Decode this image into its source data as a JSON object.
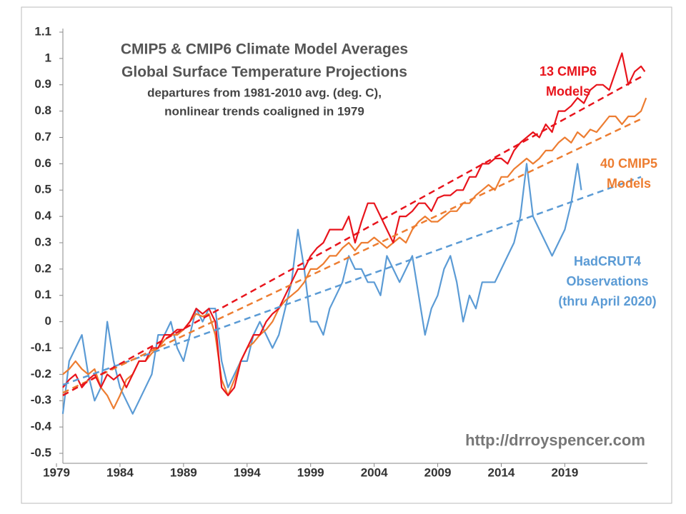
{
  "chart_data": {
    "type": "line",
    "title": [
      "CMIP5 & CMIP6 Climate Model Averages",
      "Global Surface Temperature Projections"
    ],
    "subtitle": [
      "departures from 1981-2010 avg. (deg. C),",
      "nonlinear trends coaligned in 1979"
    ],
    "source": "http://drroyspencer.com",
    "xlim": [
      1979,
      2025.5
    ],
    "xticks": [
      1979,
      1984,
      1989,
      1994,
      1999,
      2004,
      2009,
      2014,
      2019
    ],
    "ylim": [
      -0.5,
      1.1
    ],
    "yticks": [
      1.1,
      1,
      0.9,
      0.8,
      0.7,
      0.6,
      0.5,
      0.4,
      0.3,
      0.2,
      0.1,
      0,
      -0.1,
      -0.2,
      -0.3,
      -0.4,
      -0.5
    ],
    "grid": false,
    "series": [
      {
        "name": [
          "HadCRUT4",
          "Observations",
          "(thru April 2020)"
        ],
        "color": "#5b9bd5",
        "x": [
          1979.5,
          1980,
          1980.5,
          1981,
          1981.5,
          1982,
          1982.5,
          1983,
          1983.5,
          1984,
          1984.5,
          1985,
          1985.5,
          1986,
          1986.5,
          1987,
          1987.5,
          1988,
          1988.5,
          1989,
          1989.5,
          1990,
          1990.5,
          1991,
          1991.5,
          1992,
          1992.5,
          1993,
          1993.5,
          1994,
          1994.5,
          1995,
          1995.5,
          1996,
          1996.5,
          1997,
          1997.5,
          1998,
          1998.5,
          1999,
          1999.5,
          2000,
          2000.5,
          2001,
          2001.5,
          2002,
          2002.5,
          2003,
          2003.5,
          2004,
          2004.5,
          2005,
          2005.5,
          2006,
          2006.5,
          2007,
          2007.5,
          2008,
          2008.5,
          2009,
          2009.5,
          2010,
          2010.5,
          2011,
          2011.5,
          2012,
          2012.5,
          2013,
          2013.5,
          2014,
          2014.5,
          2015,
          2015.5,
          2016,
          2016.5,
          2017,
          2017.5,
          2018,
          2018.5,
          2019,
          2019.5,
          2020,
          2020.3
        ],
        "values": [
          -0.35,
          -0.15,
          -0.1,
          -0.05,
          -0.2,
          -0.3,
          -0.25,
          0.0,
          -0.15,
          -0.25,
          -0.3,
          -0.35,
          -0.3,
          -0.25,
          -0.2,
          -0.05,
          -0.05,
          0.0,
          -0.1,
          -0.15,
          -0.05,
          0.05,
          0.0,
          0.05,
          0.05,
          -0.15,
          -0.25,
          -0.2,
          -0.15,
          -0.15,
          -0.05,
          0.0,
          -0.05,
          -0.1,
          -0.05,
          0.05,
          0.15,
          0.35,
          0.2,
          0.0,
          0.0,
          -0.05,
          0.05,
          0.1,
          0.15,
          0.25,
          0.2,
          0.2,
          0.15,
          0.15,
          0.1,
          0.25,
          0.2,
          0.15,
          0.2,
          0.25,
          0.1,
          -0.05,
          0.05,
          0.1,
          0.2,
          0.25,
          0.15,
          0.0,
          0.1,
          0.05,
          0.15,
          0.15,
          0.15,
          0.2,
          0.25,
          0.3,
          0.4,
          0.6,
          0.4,
          0.35,
          0.3,
          0.25,
          0.3,
          0.35,
          0.45,
          0.6,
          0.5
        ]
      },
      {
        "name": [
          "40 CMIP5",
          "Models"
        ],
        "color": "#ed7d31",
        "x": [
          1979.5,
          1980,
          1980.5,
          1981,
          1981.5,
          1982,
          1982.5,
          1983,
          1983.5,
          1984,
          1984.5,
          1985,
          1985.5,
          1986,
          1986.5,
          1987,
          1987.5,
          1988,
          1988.5,
          1989,
          1989.5,
          1990,
          1990.5,
          1991,
          1991.5,
          1992,
          1992.5,
          1993,
          1993.5,
          1994,
          1994.5,
          1995,
          1995.5,
          1996,
          1996.5,
          1997,
          1997.5,
          1998,
          1998.5,
          1999,
          1999.5,
          2000,
          2000.5,
          2001,
          2001.5,
          2002,
          2002.5,
          2003,
          2003.5,
          2004,
          2004.5,
          2005,
          2005.5,
          2006,
          2006.5,
          2007,
          2007.5,
          2008,
          2008.5,
          2009,
          2009.5,
          2010,
          2010.5,
          2011,
          2011.5,
          2012,
          2012.5,
          2013,
          2013.5,
          2014,
          2014.5,
          2015,
          2015.5,
          2016,
          2016.5,
          2017,
          2017.5,
          2018,
          2018.5,
          2019,
          2019.5,
          2020,
          2020.5,
          2021,
          2021.5,
          2022,
          2022.5,
          2023,
          2023.5,
          2024,
          2024.5,
          2025,
          2025.4
        ],
        "values": [
          -0.2,
          -0.18,
          -0.15,
          -0.18,
          -0.2,
          -0.18,
          -0.25,
          -0.28,
          -0.33,
          -0.28,
          -0.22,
          -0.2,
          -0.15,
          -0.15,
          -0.12,
          -0.1,
          -0.07,
          -0.05,
          -0.05,
          -0.03,
          0.0,
          0.03,
          0.02,
          0.03,
          -0.05,
          -0.22,
          -0.28,
          -0.22,
          -0.15,
          -0.1,
          -0.08,
          -0.05,
          -0.03,
          0.0,
          0.05,
          0.08,
          0.1,
          0.12,
          0.15,
          0.2,
          0.2,
          0.22,
          0.25,
          0.25,
          0.28,
          0.3,
          0.27,
          0.3,
          0.3,
          0.32,
          0.3,
          0.28,
          0.3,
          0.32,
          0.3,
          0.35,
          0.38,
          0.4,
          0.38,
          0.38,
          0.4,
          0.42,
          0.42,
          0.45,
          0.45,
          0.48,
          0.5,
          0.52,
          0.5,
          0.55,
          0.55,
          0.58,
          0.6,
          0.62,
          0.6,
          0.62,
          0.65,
          0.65,
          0.68,
          0.7,
          0.68,
          0.72,
          0.7,
          0.73,
          0.72,
          0.75,
          0.78,
          0.78,
          0.75,
          0.78,
          0.78,
          0.8,
          0.85
        ]
      },
      {
        "name": [
          "13 CMIP6",
          "Models"
        ],
        "color": "#e8141c",
        "x": [
          1979.5,
          1980,
          1980.5,
          1981,
          1981.5,
          1982,
          1982.5,
          1983,
          1983.5,
          1984,
          1984.5,
          1985,
          1985.5,
          1986,
          1986.5,
          1987,
          1987.5,
          1988,
          1988.5,
          1989,
          1989.5,
          1990,
          1990.5,
          1991,
          1991.5,
          1992,
          1992.5,
          1993,
          1993.5,
          1994,
          1994.5,
          1995,
          1995.5,
          1996,
          1996.5,
          1997,
          1997.5,
          1998,
          1998.5,
          1999,
          1999.5,
          2000,
          2000.5,
          2001,
          2001.5,
          2002,
          2002.5,
          2003,
          2003.5,
          2004,
          2004.5,
          2005,
          2005.5,
          2006,
          2006.5,
          2007,
          2007.5,
          2008,
          2008.5,
          2009,
          2009.5,
          2010,
          2010.5,
          2011,
          2011.5,
          2012,
          2012.5,
          2013,
          2013.5,
          2014,
          2014.5,
          2015,
          2015.5,
          2016,
          2016.5,
          2017,
          2017.5,
          2018,
          2018.5,
          2019,
          2019.5,
          2020,
          2020.5,
          2021,
          2021.5,
          2022,
          2022.5,
          2023,
          2023.5,
          2024,
          2024.5,
          2025,
          2025.3
        ],
        "values": [
          -0.25,
          -0.22,
          -0.2,
          -0.25,
          -0.22,
          -0.2,
          -0.25,
          -0.2,
          -0.22,
          -0.2,
          -0.25,
          -0.2,
          -0.15,
          -0.15,
          -0.1,
          -0.1,
          -0.05,
          -0.05,
          -0.03,
          -0.03,
          0.0,
          0.05,
          0.03,
          0.05,
          0.0,
          -0.25,
          -0.28,
          -0.25,
          -0.15,
          -0.1,
          -0.05,
          -0.05,
          0.0,
          0.03,
          0.05,
          0.1,
          0.15,
          0.2,
          0.2,
          0.25,
          0.28,
          0.3,
          0.35,
          0.35,
          0.35,
          0.4,
          0.3,
          0.38,
          0.45,
          0.45,
          0.4,
          0.35,
          0.3,
          0.4,
          0.4,
          0.42,
          0.45,
          0.45,
          0.42,
          0.47,
          0.48,
          0.48,
          0.5,
          0.5,
          0.55,
          0.55,
          0.6,
          0.6,
          0.62,
          0.62,
          0.6,
          0.65,
          0.68,
          0.7,
          0.72,
          0.7,
          0.75,
          0.72,
          0.8,
          0.8,
          0.82,
          0.85,
          0.83,
          0.88,
          0.9,
          0.9,
          0.88,
          0.95,
          1.02,
          0.9,
          0.95,
          0.97,
          0.95
        ]
      }
    ],
    "trend_lines": [
      {
        "color": "#5b9bd5",
        "x": [
          1979.5,
          2025
        ],
        "values": [
          -0.24,
          0.55
        ]
      },
      {
        "color": "#ed7d31",
        "x": [
          1979.5,
          2025
        ],
        "values": [
          -0.27,
          0.77
        ]
      },
      {
        "color": "#e8141c",
        "x": [
          1979.5,
          2025
        ],
        "values": [
          -0.28,
          0.93
        ]
      }
    ]
  }
}
